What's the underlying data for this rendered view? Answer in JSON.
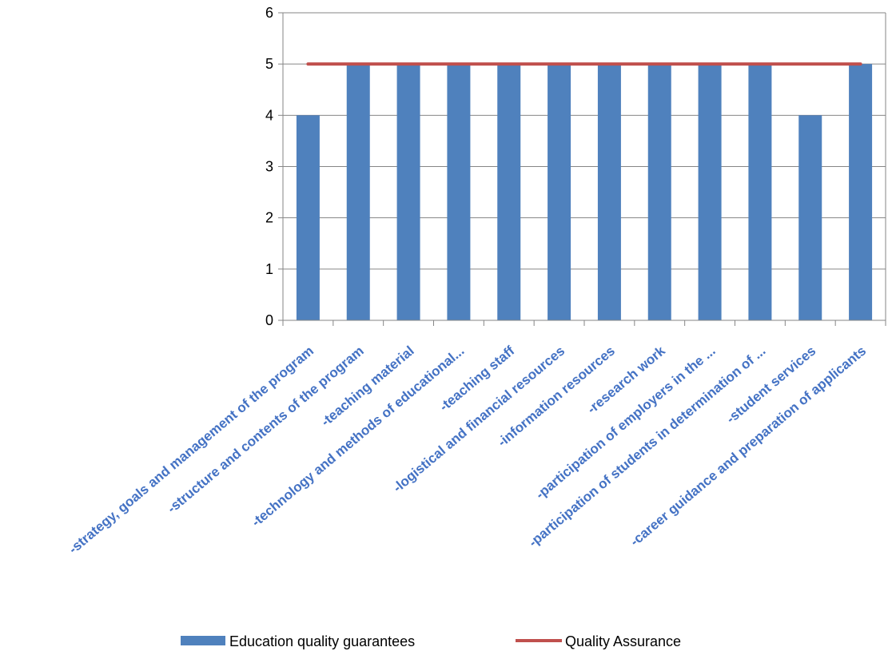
{
  "chart_data": {
    "type": "bar",
    "categories": [
      "-strategy, goals and management of the program",
      "-structure and contents of the program",
      "-teaching material",
      "-technology and methods of educational...",
      "-teaching staff",
      "-logistical and financial resources",
      "-information resources",
      "-research work",
      "-participation of employers in the ...",
      "-participation of students in determination of ...",
      "-student services",
      "-career guidance and preparation of applicants"
    ],
    "series": [
      {
        "name": "Education quality guarantees",
        "type": "bar",
        "color": "#4F81BD",
        "values": [
          4,
          5,
          5,
          5,
          5,
          5,
          5,
          5,
          5,
          5,
          4,
          5
        ]
      },
      {
        "name": "Quality Assurance",
        "type": "line",
        "color": "#C0504D",
        "values": [
          5,
          5,
          5,
          5,
          5,
          5,
          5,
          5,
          5,
          5,
          5,
          5
        ]
      }
    ],
    "yticks": [
      "0",
      "1",
      "2",
      "3",
      "4",
      "5",
      "6"
    ],
    "ylim": [
      0,
      6
    ],
    "grid": true,
    "legend_position": "bottom",
    "title": "",
    "xlabel": "",
    "ylabel": ""
  }
}
